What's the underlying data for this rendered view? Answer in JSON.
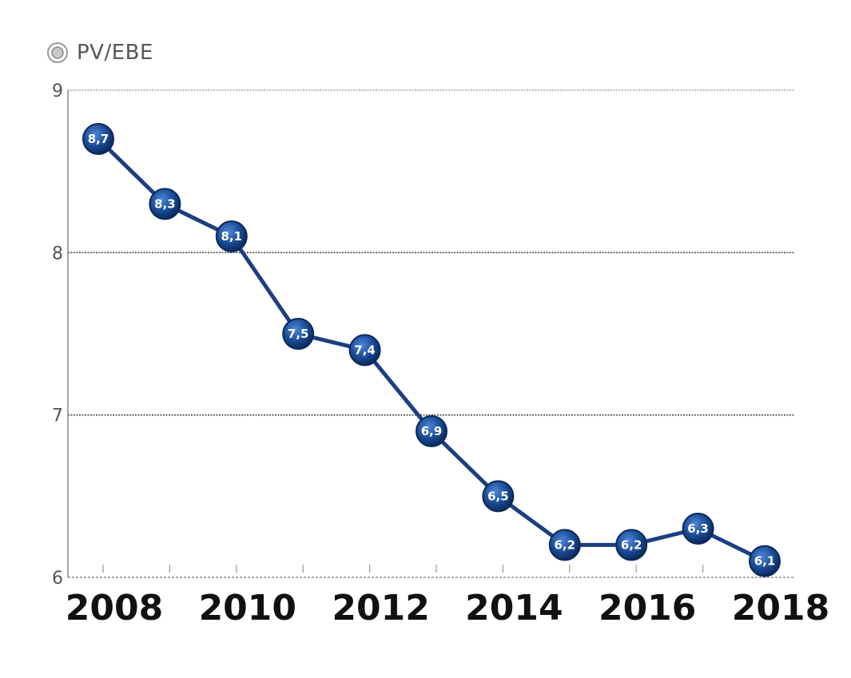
{
  "chart_data": {
    "type": "line",
    "title": "PV/EBE",
    "x": [
      2008,
      2009,
      2010,
      2011,
      2012,
      2013,
      2014,
      2015,
      2016,
      2017,
      2018
    ],
    "series": [
      {
        "values": [
          8.7,
          8.3,
          8.1,
          7.5,
          7.4,
          6.9,
          6.5,
          6.2,
          6.2,
          6.3,
          6.1
        ],
        "labels": [
          "8,7",
          "8,3",
          "8,1",
          "7,5",
          "7,4",
          "6,9",
          "6,5",
          "6,2",
          "6,2",
          "6,3",
          "6,1"
        ]
      }
    ],
    "x_tick_labels": [
      "2008",
      "2010",
      "2012",
      "2014",
      "2016",
      "2018"
    ],
    "y_tick_labels": [
      "6",
      "7",
      "8",
      "9"
    ],
    "ylim": [
      6,
      9
    ],
    "xlim": [
      2008,
      2018
    ],
    "grid": true,
    "colors": {
      "line": "#1c3f80",
      "marker": "#123a78",
      "grid": "#333333",
      "axis": "#888888"
    }
  }
}
